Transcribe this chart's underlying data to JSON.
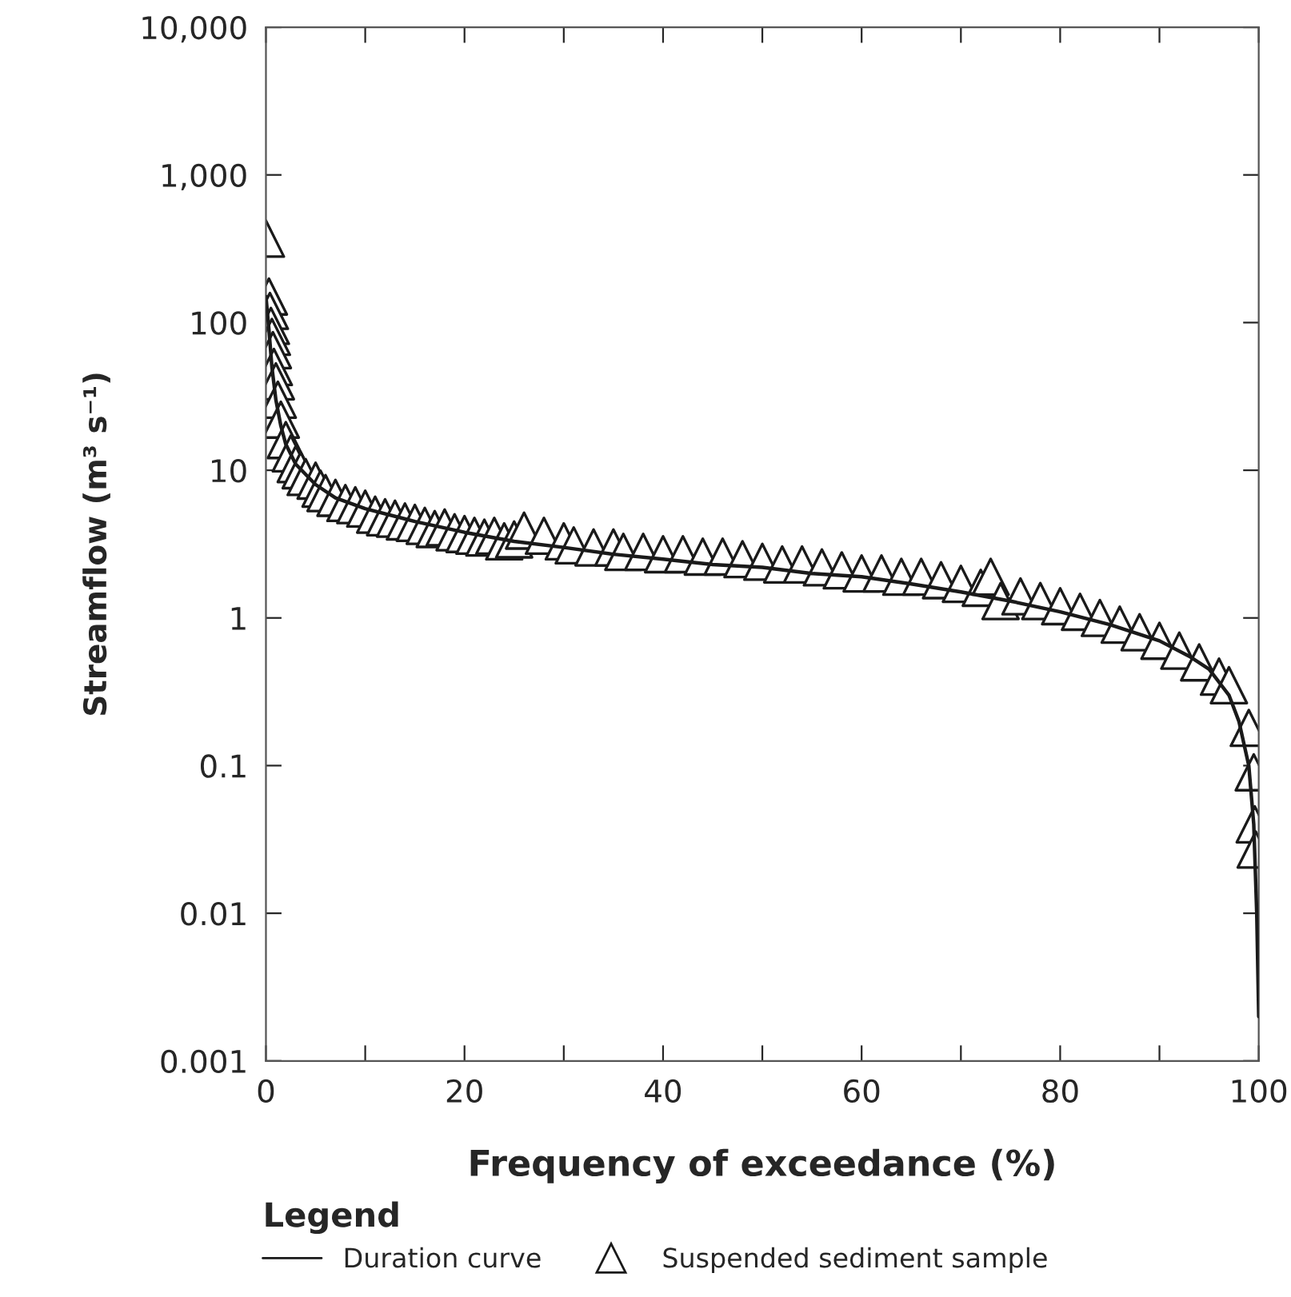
{
  "chart_data": {
    "type": "line",
    "xlabel": "Frequency of exceedance (%)",
    "ylabel": "Streamflow (m³ s⁻¹)",
    "legend_title": "Legend",
    "legend": "bottom",
    "log": "y",
    "grid": false,
    "xlim": [
      0,
      100
    ],
    "xticks": [
      0,
      {
        "value": 10,
        "label": null
      },
      20,
      {
        "value": 30,
        "label": null
      },
      40,
      {
        "value": 50,
        "label": null
      },
      60,
      {
        "value": 70,
        "label": null
      },
      80,
      {
        "value": 90,
        "label": null
      },
      100
    ],
    "ylim": [
      0.001,
      10000
    ],
    "yticks": [
      {
        "value": 0.001,
        "label": "0.001"
      },
      {
        "value": 0.01,
        "label": "0.01"
      },
      {
        "value": 0.1,
        "label": "0.1"
      },
      1,
      10,
      100,
      {
        "value": 1000,
        "label": "1,000"
      },
      {
        "value": 10000,
        "label": "10,000"
      }
    ],
    "series": [
      {
        "name": "Duration curve",
        "type": "line",
        "color": "#1a1a1a",
        "marker": "none",
        "line_style": "solid",
        "x": [
          0,
          0.3,
          0.6,
          1,
          1.5,
          2,
          3,
          5,
          7,
          10,
          15,
          20,
          25,
          30,
          35,
          40,
          45,
          50,
          55,
          60,
          65,
          70,
          75,
          80,
          85,
          90,
          93,
          95,
          97,
          98,
          99,
          99.5,
          99.8,
          100
        ],
        "values": [
          150,
          90,
          50,
          30,
          20,
          15,
          11,
          8,
          6.5,
          5.5,
          4.5,
          3.8,
          3.3,
          3.0,
          2.7,
          2.5,
          2.3,
          2.2,
          2.0,
          1.9,
          1.7,
          1.5,
          1.3,
          1.1,
          0.9,
          0.7,
          0.55,
          0.45,
          0.3,
          0.2,
          0.1,
          0.04,
          0.01,
          0.002
        ]
      },
      {
        "name": "Suspended sediment sample",
        "type": "scatter",
        "color": "#1a1a1a",
        "marker": "triangle",
        "x": [
          0,
          0.3,
          0.4,
          0.5,
          0.6,
          0.7,
          0.8,
          1,
          1.2,
          1.5,
          2,
          2.5,
          3,
          3.5,
          4,
          5,
          5.5,
          6,
          7,
          8,
          9,
          10,
          11,
          12,
          13,
          14,
          15,
          16,
          17,
          18,
          19,
          20,
          21,
          22,
          23,
          24,
          25,
          26,
          28,
          30,
          31,
          33,
          35,
          36,
          38,
          40,
          42,
          44,
          46,
          48,
          50,
          52,
          54,
          56,
          58,
          60,
          62,
          64,
          66,
          68,
          70,
          72,
          73,
          74,
          76,
          78,
          80,
          82,
          84,
          86,
          88,
          90,
          92,
          94,
          96,
          97,
          99,
          99.5,
          99.6,
          99.7
        ],
        "values": [
          370,
          150,
          120,
          95,
          80,
          65,
          50,
          40,
          30,
          22,
          16,
          13,
          11,
          10,
          9,
          8.5,
          7.5,
          7,
          6.5,
          6,
          5.8,
          5.5,
          5,
          4.8,
          4.7,
          4.5,
          4.4,
          4.2,
          4,
          4.1,
          3.8,
          3.7,
          3.6,
          3.5,
          3.6,
          3.3,
          3.4,
          3.9,
          3.6,
          3.3,
          3.1,
          3.0,
          3.0,
          2.8,
          2.8,
          2.7,
          2.7,
          2.6,
          2.6,
          2.5,
          2.4,
          2.3,
          2.3,
          2.2,
          2.1,
          2.0,
          2.0,
          1.9,
          1.9,
          1.8,
          1.7,
          1.6,
          1.9,
          1.3,
          1.4,
          1.3,
          1.2,
          1.1,
          1.0,
          0.9,
          0.8,
          0.7,
          0.6,
          0.5,
          0.4,
          0.35,
          0.18,
          0.09,
          0.04,
          0.027
        ]
      }
    ]
  }
}
